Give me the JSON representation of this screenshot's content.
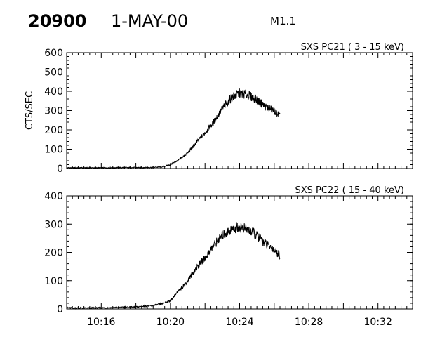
{
  "header": {
    "event_id": "20900",
    "date": "1-MAY-00",
    "flare_class": "M1.1"
  },
  "chart_data": [
    {
      "type": "line",
      "title": "SXS PC21  (  3 - 15 keV)",
      "ylabel": "CTS/SEC",
      "xlabel": "",
      "xlim": [
        "10:14",
        "10:34"
      ],
      "ylim": [
        0,
        600
      ],
      "yticks": [
        "0",
        "100",
        "200",
        "300",
        "400",
        "500",
        "600"
      ],
      "xticks": [],
      "grid": false,
      "points": [
        [
          "10:14",
          4
        ],
        [
          "10:15",
          4
        ],
        [
          "10:16",
          4
        ],
        [
          "10:17",
          5
        ],
        [
          "10:18",
          5
        ],
        [
          "10:19",
          6
        ],
        [
          "10:19:30",
          8
        ],
        [
          "10:20",
          20
        ],
        [
          "10:20:30",
          45
        ],
        [
          "10:21",
          80
        ],
        [
          "10:21:30",
          135
        ],
        [
          "10:22",
          185
        ],
        [
          "10:22:30",
          240
        ],
        [
          "10:23",
          310
        ],
        [
          "10:23:30",
          365
        ],
        [
          "10:24",
          390
        ],
        [
          "10:24:30",
          380
        ],
        [
          "10:25",
          355
        ],
        [
          "10:25:30",
          320
        ],
        [
          "10:26",
          300
        ],
        [
          "10:26:20",
          270
        ]
      ]
    },
    {
      "type": "line",
      "title": "SXS PC22  ( 15 - 40 keV)",
      "ylabel": "",
      "xlabel": "",
      "xlim": [
        "10:14",
        "10:34"
      ],
      "ylim": [
        0,
        400
      ],
      "yticks": [
        "0",
        "100",
        "200",
        "300",
        "400"
      ],
      "xticks": [
        "10:16",
        "10:20",
        "10:24",
        "10:28",
        "10:32"
      ],
      "grid": false,
      "points": [
        [
          "10:14",
          4
        ],
        [
          "10:15",
          3
        ],
        [
          "10:16",
          4
        ],
        [
          "10:17",
          5
        ],
        [
          "10:18",
          7
        ],
        [
          "10:19",
          12
        ],
        [
          "10:19:30",
          18
        ],
        [
          "10:20",
          30
        ],
        [
          "10:20:30",
          65
        ],
        [
          "10:21",
          100
        ],
        [
          "10:21:30",
          145
        ],
        [
          "10:22",
          180
        ],
        [
          "10:22:30",
          225
        ],
        [
          "10:23",
          260
        ],
        [
          "10:23:30",
          280
        ],
        [
          "10:24",
          290
        ],
        [
          "10:24:30",
          280
        ],
        [
          "10:25",
          260
        ],
        [
          "10:25:30",
          230
        ],
        [
          "10:26",
          210
        ],
        [
          "10:26:20",
          190
        ]
      ]
    }
  ]
}
